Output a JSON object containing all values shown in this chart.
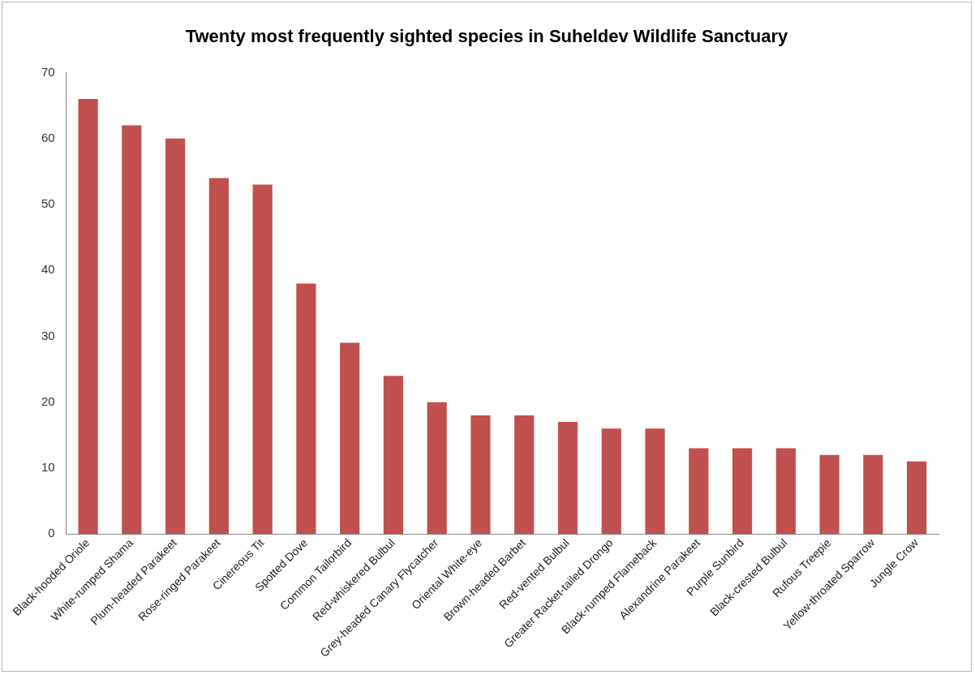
{
  "chart_data": {
    "type": "bar",
    "title": "Twenty most frequently sighted species in Suheldev Wildlife Sanctuary",
    "categories": [
      "Black-hooded Oriole",
      "White-rumped Shama",
      "Plum-headed Parakeet",
      "Rose-ringed Parakeet",
      "Cinereous Tit",
      "Spotted Dove",
      "Common Tailorbird",
      "Red-whiskered Bulbul",
      "Grey-headed Canary Flycatcher",
      "Oriental White-eye",
      "Brown-headed Barbet",
      "Red-vented Bulbul",
      "Greater Racket-tailed Drongo",
      "Black-rumped Flameback",
      "Alexandrine Parakeet",
      "Purple Sunbird",
      "Black-crested Bulbul",
      "Rufous Treepie",
      "Yellow-throated Sparrow",
      "Jungle Crow"
    ],
    "values": [
      66,
      62,
      60,
      54,
      53,
      38,
      29,
      24,
      20,
      18,
      18,
      17,
      16,
      16,
      13,
      13,
      13,
      12,
      12,
      11
    ],
    "color": "#c0504d",
    "ylim": [
      0,
      70
    ],
    "yticks": [
      0,
      10,
      20,
      30,
      40,
      50,
      60,
      70
    ],
    "grid": false,
    "legend": false
  }
}
